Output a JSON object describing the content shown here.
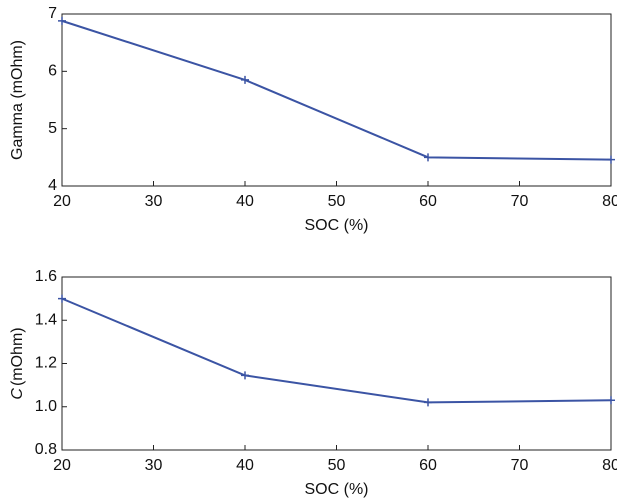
{
  "chart_data": [
    {
      "type": "line",
      "xlabel": "SOC (%)",
      "ylabel": "Gamma (mOhm)",
      "x": [
        20,
        40,
        60,
        80
      ],
      "series": [
        {
          "color": "#3b54a4",
          "values": [
            6.88,
            5.85,
            4.5,
            4.46
          ]
        }
      ],
      "xlim": [
        20,
        80
      ],
      "xticks": [
        20,
        30,
        40,
        50,
        60,
        70,
        80
      ],
      "ylim": [
        4,
        7
      ],
      "yticks": [
        4,
        5,
        6,
        7
      ]
    },
    {
      "type": "line",
      "xlabel": "SOC (%)",
      "ylabel_symbol": "C",
      "ylabel_unit": "(mOhm)",
      "x": [
        20,
        40,
        60,
        80
      ],
      "series": [
        {
          "color": "#3b54a4",
          "values": [
            1.5,
            1.145,
            1.02,
            1.03
          ]
        }
      ],
      "xlim": [
        20,
        80
      ],
      "xticks": [
        20,
        30,
        40,
        50,
        60,
        70,
        80
      ],
      "ylim": [
        0.8,
        1.6
      ],
      "yticks": [
        0.8,
        {
          "value": 1,
          "label": "1.0"
        },
        1.2,
        1.4,
        1.6
      ]
    }
  ]
}
